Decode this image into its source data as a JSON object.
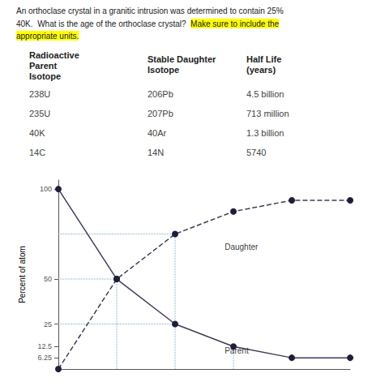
{
  "chart_data": {
    "type": "line",
    "question": [
      [
        {
          "text": "An orthoclase crystal in a granitic intrusion was determined to contain 25%"
        }
      ],
      [
        {
          "text": "40K.  What is the age of the orthoclase crystal?  "
        },
        {
          "text": "Make sure to include the",
          "highlight": "#ffff00"
        }
      ],
      [
        {
          "text": "appropriate units.",
          "highlight": "#ffff00"
        }
      ]
    ],
    "table": {
      "columns": [
        [
          "Radioactive",
          "Parent",
          "Isotope"
        ],
        [
          "Stable Daughter",
          "Isotope"
        ],
        [
          "Half Life",
          "(years)"
        ]
      ],
      "rows": [
        [
          "238U",
          "206Pb",
          "4.5 billion"
        ],
        [
          "235U",
          "207Pb",
          "713 million"
        ],
        [
          "40K",
          "40Ar",
          "1.3 billion"
        ],
        [
          "14C",
          "14N",
          "5740"
        ]
      ]
    },
    "ylabel": "Percent of atom",
    "x": [
      0,
      1,
      2,
      3,
      4,
      5
    ],
    "series": [
      {
        "name": "Parent",
        "values": [
          100,
          50,
          25,
          12.5,
          6.25,
          6.25
        ],
        "color": "#3d3d5c",
        "marker_color": "#1e1e3a",
        "marker": "circle",
        "line_style": "solid",
        "label_x": 2.85,
        "label_y": 10
      },
      {
        "name": "Daughter",
        "values": [
          0,
          50,
          75,
          87.5,
          93.75,
          93.75
        ],
        "color": "#3d3d5c",
        "marker_color": "#1e1e3a",
        "marker": "circle",
        "line_style": "dashed",
        "label_x": 2.85,
        "label_y": 68
      }
    ],
    "reference_lines": [
      {
        "x": [
          1,
          1
        ],
        "y": [
          0,
          50
        ]
      },
      {
        "x": [
          0,
          1
        ],
        "y": [
          50,
          50
        ]
      },
      {
        "x": [
          2,
          2
        ],
        "y": [
          0,
          75
        ]
      },
      {
        "x": [
          0,
          2
        ],
        "y": [
          75,
          75
        ]
      },
      {
        "x": [
          0,
          2
        ],
        "y": [
          25,
          25
        ]
      },
      {
        "x": [
          3,
          3
        ],
        "y": [
          0,
          12.5
        ]
      }
    ],
    "reference_color": "#7aaacc",
    "xlim": [
      0,
      5
    ],
    "ylim": [
      0,
      105
    ],
    "yticks": [
      6.25,
      12.5,
      25,
      50,
      100
    ],
    "grid": false,
    "tick_labels": "y"
  }
}
